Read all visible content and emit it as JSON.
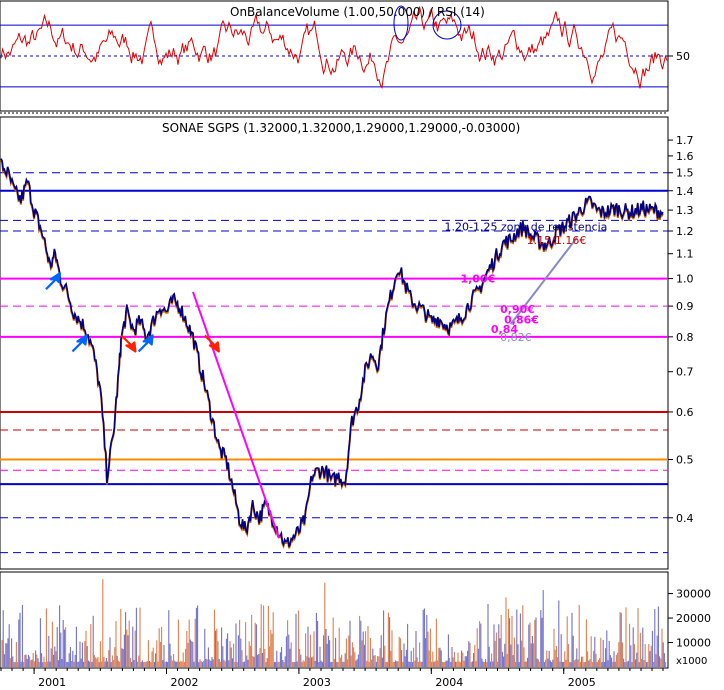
{
  "chart_data": [
    {
      "panel": "rsi",
      "type": "line",
      "title": "OnBalanceVolume (1.00,50.000) / RSI (14)",
      "ylim": [
        15,
        85
      ],
      "yticks": [
        50
      ],
      "ytick_labels": [
        "50"
      ],
      "levels": [
        {
          "value": 70,
          "style": "solid",
          "color": "#0000cc"
        },
        {
          "value": 30,
          "style": "solid",
          "color": "#0000cc"
        },
        {
          "value": 50,
          "style": "dashed",
          "color": "#0000cc"
        }
      ],
      "series": [
        {
          "color": "#e00000"
        }
      ]
    },
    {
      "panel": "price",
      "type": "line",
      "title": "SONAE SGPS (1.32000,1.32000,1.29000,1.29000,-0.03000)",
      "scale": "log",
      "ylim": [
        0.33,
        1.85
      ],
      "yticks": [
        0.4,
        0.5,
        0.6,
        0.7,
        0.8,
        0.9,
        1.0,
        1.1,
        1.2,
        1.3,
        1.4,
        1.5,
        1.6,
        1.7
      ],
      "ytick_labels": [
        "0.4",
        "0.5",
        "0.6",
        "0.7",
        "0.8",
        "0.9",
        "1.0",
        "1.1",
        "1.2",
        "1.3",
        "1.4",
        "1.5",
        "1.6",
        "1.7"
      ],
      "x": [
        2000.75,
        2000.8,
        2000.85,
        2000.9,
        2000.95,
        2001.0,
        2001.03,
        2001.08,
        2001.12,
        2001.16,
        2001.2,
        2001.25,
        2001.3,
        2001.35,
        2001.4,
        2001.45,
        2001.5,
        2001.55,
        2001.6,
        2001.64,
        2001.66,
        2001.7,
        2001.75,
        2001.8,
        2001.85,
        2001.9,
        2001.95,
        2002.0,
        2002.05,
        2002.1,
        2002.15,
        2002.2,
        2002.25,
        2002.3,
        2002.35,
        2002.4,
        2002.45,
        2002.5,
        2002.55,
        2002.6,
        2002.65,
        2002.7,
        2002.75,
        2002.8,
        2002.85,
        2002.9,
        2002.95,
        2003.0,
        2003.05,
        2003.1,
        2003.15,
        2003.2,
        2003.25,
        2003.3,
        2003.35,
        2003.4,
        2003.45,
        2003.5,
        2003.55,
        2003.6,
        2003.65,
        2003.7,
        2003.75,
        2003.8,
        2003.85,
        2003.9,
        2003.95,
        2004.0,
        2004.05,
        2004.1,
        2004.15,
        2004.2,
        2004.25,
        2004.3,
        2004.35,
        2004.4,
        2004.45,
        2004.5,
        2004.55,
        2004.6,
        2004.65,
        2004.7,
        2004.75,
        2004.8,
        2004.85,
        2004.9,
        2004.95,
        2005.0,
        2005.05,
        2005.1,
        2005.15,
        2005.2,
        2005.25,
        2005.3,
        2005.35,
        2005.4,
        2005.45,
        2005.5,
        2005.55,
        2005.6,
        2005.65,
        2005.7,
        2005.75
      ],
      "y": [
        1.55,
        1.5,
        1.4,
        1.35,
        1.45,
        1.3,
        1.25,
        1.15,
        1.05,
        1.1,
        1.0,
        0.95,
        0.88,
        0.85,
        0.82,
        0.75,
        0.65,
        0.47,
        0.55,
        0.7,
        0.8,
        0.88,
        0.82,
        0.85,
        0.8,
        0.85,
        0.9,
        0.88,
        0.92,
        0.9,
        0.85,
        0.8,
        0.72,
        0.65,
        0.58,
        0.52,
        0.5,
        0.45,
        0.4,
        0.38,
        0.42,
        0.4,
        0.42,
        0.4,
        0.38,
        0.36,
        0.37,
        0.38,
        0.4,
        0.47,
        0.48,
        0.48,
        0.46,
        0.47,
        0.46,
        0.58,
        0.62,
        0.7,
        0.75,
        0.72,
        0.85,
        0.95,
        1.05,
        0.98,
        0.92,
        0.9,
        0.88,
        0.85,
        0.86,
        0.84,
        0.83,
        0.85,
        0.88,
        0.92,
        0.95,
        1.0,
        1.05,
        1.1,
        1.15,
        1.16,
        1.2,
        1.22,
        1.18,
        1.16,
        1.14,
        1.15,
        1.2,
        1.22,
        1.25,
        1.28,
        1.32,
        1.34,
        1.3,
        1.29,
        1.3,
        1.31,
        1.3,
        1.29,
        1.3,
        1.31,
        1.3,
        1.3,
        1.29
      ],
      "horizontal_lines": [
        {
          "value": 1.5,
          "style": "dashed",
          "color": "#0000cc"
        },
        {
          "value": 1.4,
          "style": "solid",
          "color": "#0000cc"
        },
        {
          "value": 1.25,
          "style": "dashed",
          "color": "#0000cc"
        },
        {
          "value": 1.2,
          "style": "dashed",
          "color": "#0000cc"
        },
        {
          "value": 1.0,
          "style": "solid",
          "color": "#ff00ff"
        },
        {
          "value": 0.9,
          "style": "dashed",
          "color": "#ff00ff"
        },
        {
          "value": 0.8,
          "style": "solid",
          "color": "#ff00ff"
        },
        {
          "value": 0.6,
          "style": "solid",
          "color": "#cc0000"
        },
        {
          "value": 0.56,
          "style": "dashed",
          "color": "#cc0000"
        },
        {
          "value": 0.5,
          "style": "solid",
          "color": "#ff8800"
        },
        {
          "value": 0.48,
          "style": "dashed",
          "color": "#ff00ff"
        },
        {
          "value": 0.455,
          "style": "solid",
          "color": "#0000cc"
        },
        {
          "value": 0.4,
          "style": "dashed",
          "color": "#0000cc"
        },
        {
          "value": 0.35,
          "style": "dashed",
          "color": "#0000cc"
        }
      ],
      "trendlines": [
        {
          "from": [
            2002.2,
            0.95
          ],
          "to": [
            2002.85,
            0.37
          ],
          "color": "#ff00ff"
        },
        {
          "from": [
            2004.6,
            0.84
          ],
          "to": [
            2005.1,
            1.17
          ],
          "color": "#8888cc"
        }
      ],
      "annotations": [
        {
          "text": "1.20-1.25 zona de resistencia",
          "x": 2004.1,
          "y": 1.22,
          "color": "#000080"
        },
        {
          "text": "1.15/1.16€",
          "x": 2004.72,
          "y": 1.16,
          "color": "#cc0000"
        },
        {
          "text": "1,00€",
          "x": 2004.22,
          "y": 1.0,
          "color": "#ff00ff"
        },
        {
          "text": "0,90€",
          "x": 2004.52,
          "y": 0.89,
          "color": "#ff00ff"
        },
        {
          "text": "0,86€",
          "x": 2004.55,
          "y": 0.855,
          "color": "#ff00ff"
        },
        {
          "text": "0,84",
          "x": 2004.45,
          "y": 0.825,
          "color": "#ff00ff"
        },
        {
          "text": "0,82€",
          "x": 2004.52,
          "y": 0.8,
          "color": "#8888cc"
        }
      ],
      "arrows": [
        {
          "x": 2001.15,
          "y": 0.99,
          "dir": "up",
          "color": "#0066ff"
        },
        {
          "x": 2001.35,
          "y": 0.78,
          "dir": "up",
          "color": "#0066ff"
        },
        {
          "x": 2001.72,
          "y": 0.78,
          "dir": "down",
          "color": "#ff2200"
        },
        {
          "x": 2001.85,
          "y": 0.78,
          "dir": "up",
          "color": "#0066ff"
        },
        {
          "x": 2002.35,
          "y": 0.78,
          "dir": "down",
          "color": "#ff2200"
        }
      ]
    },
    {
      "panel": "volume",
      "type": "bar",
      "ylim": [
        0,
        38000
      ],
      "yticks": [
        10000,
        20000,
        30000
      ],
      "ytick_labels": [
        "10000",
        "20000",
        "30000"
      ],
      "unit_label": "x1000",
      "series": [
        {
          "color": "#7070cc"
        },
        {
          "color": "#e08050"
        }
      ]
    }
  ],
  "x_axis": {
    "labels": [
      "2001",
      "2002",
      "2003",
      "2004",
      "2005"
    ],
    "ticks": [
      2001,
      2002,
      2003,
      2004,
      2005
    ],
    "range": [
      2000.75,
      2005.78
    ]
  }
}
